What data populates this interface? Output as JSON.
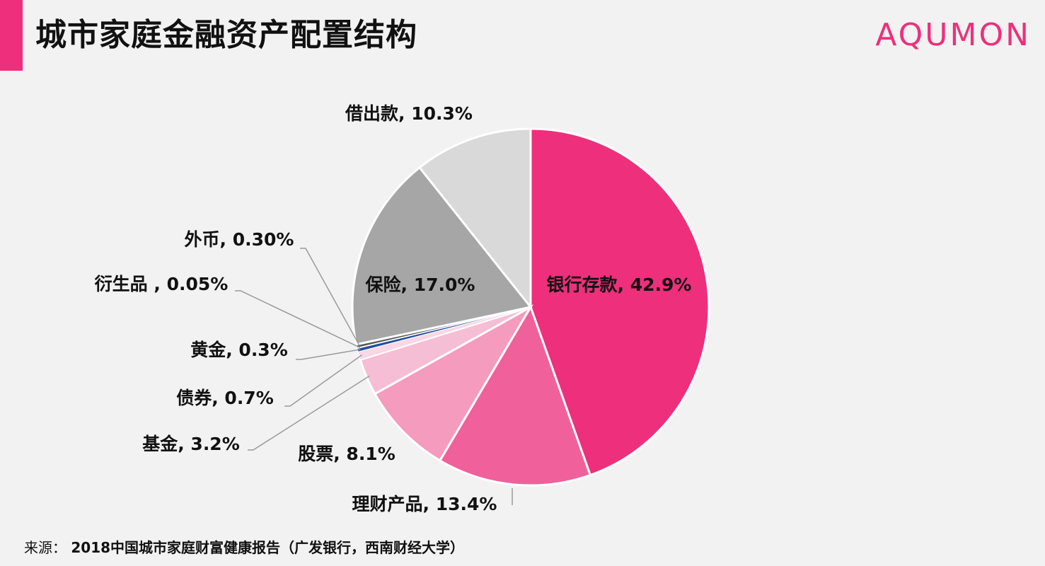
{
  "header": {
    "title": "城市家庭金融资产配置结构",
    "brand": "AQUMON",
    "accent_color": "#ee2f7b"
  },
  "source": {
    "label": "来源：",
    "text": "2018中国城市家庭财富健康报告（广发银行，西南财经大学）"
  },
  "chart_data": {
    "type": "pie",
    "title": "城市家庭金融资产配置结构",
    "start": "top-clockwise",
    "slices": [
      {
        "name": "银行存款",
        "label": "银行存款, 42.9%",
        "value": 42.9,
        "color": "#ee2f7b"
      },
      {
        "name": "理财产品",
        "label": "理财产品, 13.4%",
        "value": 13.4,
        "color": "#f0609a"
      },
      {
        "name": "股票",
        "label": "股票, 8.1%",
        "value": 8.1,
        "color": "#f59bbd"
      },
      {
        "name": "基金",
        "label": "基金, 3.2%",
        "value": 3.2,
        "color": "#f6bed4"
      },
      {
        "name": "债券",
        "label": "债券, 0.7%",
        "value": 0.7,
        "color": "#fad7e4"
      },
      {
        "name": "黄金",
        "label": "黄金, 0.3%",
        "value": 0.3,
        "color": "#1f4e9c"
      },
      {
        "name": "衍生品",
        "label": "衍生品 , 0.05%",
        "value": 0.05,
        "color": "#2c2c2c"
      },
      {
        "name": "外币",
        "label": "外币, 0.30%",
        "value": 0.3,
        "color": "#5a5a5a"
      },
      {
        "name": "保险",
        "label": "保险, 17.0%",
        "value": 17.0,
        "color": "#a6a6a6"
      },
      {
        "name": "借出款",
        "label": "借出款, 10.3%",
        "value": 10.3,
        "color": "#d9d9d9"
      }
    ]
  }
}
